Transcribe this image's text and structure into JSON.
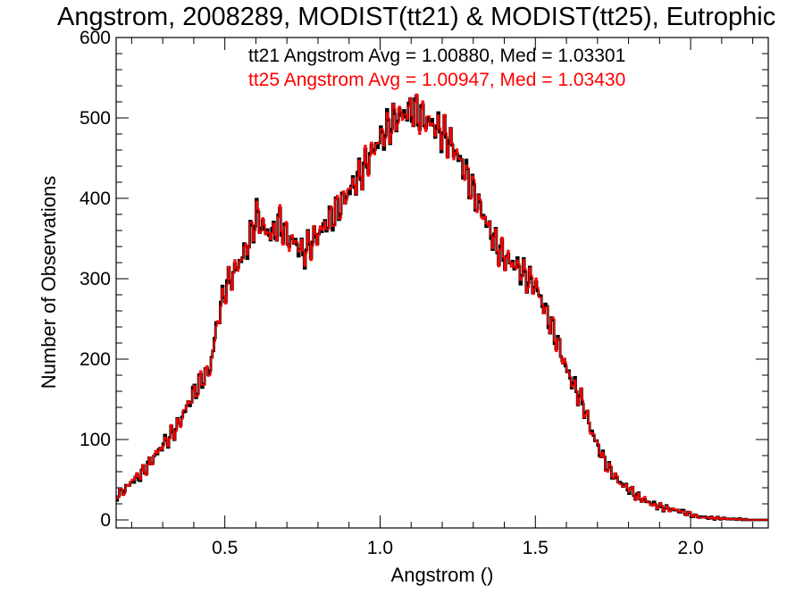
{
  "chart_data": {
    "type": "line",
    "title": "Angstrom, 2008289, MODIST(tt21) & MODIST(tt25), Eutrophic",
    "xlabel": "Angstrom ()",
    "ylabel": "Number of Observations",
    "xlim": [
      0.15,
      2.25
    ],
    "ylim": [
      -10,
      600
    ],
    "x_ticks": [
      0.5,
      1.0,
      1.5,
      2.0
    ],
    "x_tick_labels": [
      "0.5",
      "1.0",
      "1.5",
      "2.0"
    ],
    "y_ticks": [
      0,
      100,
      200,
      300,
      400,
      500,
      600
    ],
    "y_tick_labels": [
      "0",
      "100",
      "200",
      "300",
      "400",
      "500",
      "600"
    ],
    "grid": false,
    "legend": "none",
    "annotations": [
      {
        "text": "tt21 Angstrom Avg = 1.00880, Med = 1.03301",
        "color": "#000000"
      },
      {
        "text": "tt25 Angstrom Avg = 1.00947, Med = 1.03430",
        "color": "#ff0000"
      }
    ],
    "bin_width": 0.005,
    "series": [
      {
        "color": "#000000",
        "style": "step",
        "x": [
          0.15,
          0.175,
          0.2,
          0.225,
          0.25,
          0.275,
          0.3,
          0.325,
          0.35,
          0.375,
          0.4,
          0.425,
          0.45,
          0.475,
          0.5,
          0.525,
          0.55,
          0.575,
          0.6,
          0.625,
          0.65,
          0.675,
          0.7,
          0.725,
          0.75,
          0.775,
          0.8,
          0.825,
          0.85,
          0.875,
          0.9,
          0.925,
          0.95,
          0.975,
          1.0,
          1.025,
          1.05,
          1.075,
          1.1,
          1.125,
          1.15,
          1.175,
          1.2,
          1.225,
          1.25,
          1.275,
          1.3,
          1.325,
          1.35,
          1.375,
          1.4,
          1.425,
          1.45,
          1.475,
          1.5,
          1.525,
          1.55,
          1.575,
          1.6,
          1.625,
          1.65,
          1.675,
          1.7,
          1.725,
          1.75,
          1.775,
          1.8,
          1.825,
          1.85,
          1.875,
          1.9,
          1.925,
          1.95,
          1.975,
          2.0,
          2.025,
          2.05,
          2.075,
          2.1,
          2.125,
          2.15,
          2.175,
          2.2,
          2.225,
          2.25
        ],
        "y": [
          30,
          38,
          48,
          55,
          68,
          80,
          95,
          105,
          120,
          140,
          160,
          175,
          188,
          250,
          290,
          305,
          325,
          345,
          380,
          360,
          355,
          370,
          350,
          345,
          330,
          345,
          355,
          370,
          380,
          395,
          410,
          425,
          440,
          460,
          475,
          490,
          500,
          505,
          510,
          505,
          495,
          490,
          480,
          470,
          450,
          430,
          405,
          385,
          360,
          340,
          325,
          320,
          310,
          300,
          290,
          265,
          240,
          215,
          185,
          165,
          145,
          115,
          90,
          70,
          55,
          45,
          38,
          30,
          24,
          20,
          16,
          14,
          12,
          10,
          6,
          4,
          3,
          2,
          2,
          1,
          1,
          0,
          0,
          0,
          0
        ]
      },
      {
        "color": "#ff0000",
        "style": "step",
        "x": [
          0.15,
          0.175,
          0.2,
          0.225,
          0.25,
          0.275,
          0.3,
          0.325,
          0.35,
          0.375,
          0.4,
          0.425,
          0.45,
          0.475,
          0.5,
          0.525,
          0.55,
          0.575,
          0.6,
          0.625,
          0.65,
          0.675,
          0.7,
          0.725,
          0.75,
          0.775,
          0.8,
          0.825,
          0.85,
          0.875,
          0.9,
          0.925,
          0.95,
          0.975,
          1.0,
          1.025,
          1.05,
          1.075,
          1.1,
          1.125,
          1.15,
          1.175,
          1.2,
          1.225,
          1.25,
          1.275,
          1.3,
          1.325,
          1.35,
          1.375,
          1.4,
          1.425,
          1.45,
          1.475,
          1.5,
          1.525,
          1.55,
          1.575,
          1.6,
          1.625,
          1.65,
          1.675,
          1.7,
          1.725,
          1.75,
          1.775,
          1.8,
          1.825,
          1.85,
          1.875,
          1.9,
          1.925,
          1.95,
          1.975,
          2.0,
          2.025,
          2.05,
          2.075,
          2.1,
          2.125,
          2.15,
          2.175,
          2.2,
          2.225,
          2.25
        ],
        "y": [
          32,
          36,
          50,
          57,
          66,
          82,
          93,
          107,
          118,
          142,
          158,
          177,
          186,
          248,
          288,
          307,
          323,
          347,
          378,
          362,
          353,
          372,
          348,
          347,
          332,
          343,
          357,
          368,
          382,
          393,
          412,
          423,
          442,
          458,
          477,
          488,
          502,
          503,
          512,
          503,
          497,
          488,
          482,
          468,
          452,
          428,
          407,
          383,
          362,
          338,
          327,
          318,
          312,
          298,
          292,
          263,
          242,
          213,
          187,
          163,
          147,
          113,
          92,
          68,
          57,
          43,
          40,
          28,
          26,
          18,
          17,
          13,
          13,
          9,
          7,
          3,
          3,
          2,
          2,
          1,
          1,
          0,
          0,
          0,
          0
        ]
      }
    ]
  }
}
